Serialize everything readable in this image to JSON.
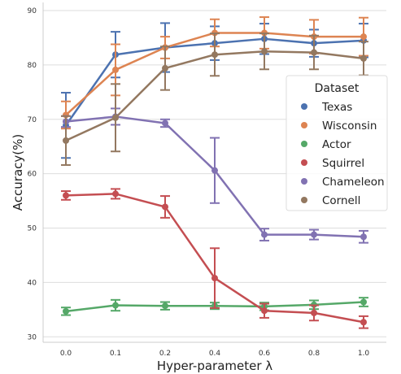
{
  "chart_data": {
    "type": "line",
    "x": [
      "0.0",
      "0.1",
      "0.2",
      "0.4",
      "0.6",
      "0.8",
      "1.0"
    ],
    "xlabel": "Hyper-parameter λ",
    "ylabel": "Accuracy(%)",
    "ylim": [
      29.0,
      91.5
    ],
    "yticks": [
      30,
      40,
      50,
      60,
      70,
      80,
      90
    ],
    "grid": "horizontal",
    "legend": {
      "title": "Dataset",
      "placement": "right"
    },
    "series": [
      {
        "name": "Texas",
        "color": "#4c72b0",
        "values": [
          68.9,
          81.9,
          83.2,
          84.0,
          84.8,
          84.0,
          84.5
        ],
        "errors": [
          6.0,
          4.2,
          4.5,
          3.1,
          2.8,
          2.5,
          3.1
        ]
      },
      {
        "name": "Wisconsin",
        "color": "#dd8452",
        "values": [
          70.8,
          79.1,
          83.2,
          85.9,
          85.9,
          85.2,
          85.2
        ],
        "errors": [
          2.5,
          4.7,
          2.0,
          2.5,
          2.9,
          3.1,
          3.5
        ]
      },
      {
        "name": "Actor",
        "color": "#55a868",
        "values": [
          34.7,
          35.8,
          35.7,
          35.7,
          35.6,
          35.9,
          36.4
        ],
        "errors": [
          0.7,
          1.0,
          0.7,
          0.6,
          0.7,
          0.8,
          0.8
        ]
      },
      {
        "name": "Squirrel",
        "color": "#c44e52",
        "values": [
          56.0,
          56.3,
          53.9,
          40.8,
          34.8,
          34.4,
          32.7
        ],
        "errors": [
          0.8,
          0.9,
          2.0,
          5.5,
          1.3,
          1.4,
          1.1
        ]
      },
      {
        "name": "Chameleon",
        "color": "#8172b2",
        "values": [
          69.6,
          70.5,
          69.3,
          60.6,
          48.8,
          48.8,
          48.4
        ],
        "errors": [
          1.0,
          1.5,
          0.7,
          6.0,
          1.1,
          0.9,
          1.1
        ]
      },
      {
        "name": "Cornell",
        "color": "#937860",
        "values": [
          66.1,
          70.3,
          79.4,
          81.9,
          82.5,
          82.3,
          81.2
        ],
        "errors": [
          4.5,
          6.2,
          4.0,
          3.9,
          3.3,
          3.1,
          3.1
        ]
      }
    ]
  }
}
